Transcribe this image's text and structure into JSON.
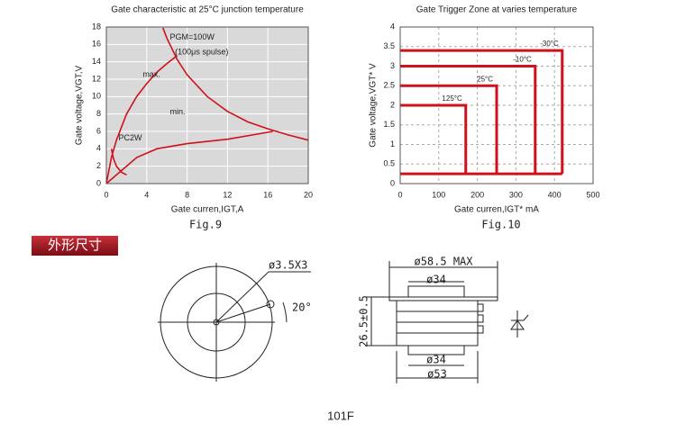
{
  "chart_data": [
    {
      "type": "line",
      "title": "Gate characteristic at 25°C junction temperature",
      "x_label": "Gate curren,IGT,A",
      "y_label": "Gate voltage,VGT,V",
      "xlim": [
        0,
        20
      ],
      "xticks": [
        0,
        4,
        8,
        12,
        16,
        20
      ],
      "ylim": [
        0,
        18
      ],
      "yticks": [
        0,
        2,
        4,
        6,
        8,
        10,
        12,
        14,
        16,
        18
      ],
      "grid": true,
      "series": [
        {
          "color": "#d0101b",
          "x": [
            0,
            0.5,
            1,
            2,
            3,
            4,
            5,
            6,
            7
          ],
          "values": [
            0,
            3,
            5,
            8,
            10,
            11.5,
            12.8,
            13.8,
            14.7
          ]
        },
        {
          "color": "#d0101b",
          "x": [
            0,
            1.5,
            3,
            5,
            8,
            12,
            16.5
          ],
          "values": [
            0,
            1.5,
            3,
            4,
            4.6,
            5.1,
            6
          ]
        },
        {
          "color": "#d0101b",
          "x": [
            5.6,
            6,
            7,
            8,
            10,
            12,
            14,
            16,
            18,
            20
          ],
          "values": [
            17.9,
            16.7,
            14.3,
            12.5,
            10,
            8.3,
            7.1,
            6.3,
            5.6,
            5
          ]
        },
        {
          "color": "#d0101b",
          "x": [
            0.5,
            0.7,
            1,
            1.5,
            2
          ],
          "values": [
            4,
            2.9,
            2,
            1.3,
            1
          ]
        }
      ],
      "annotations": [
        "PGM=100W",
        "(100μs spulse)",
        "max.",
        "min.",
        "PC2W"
      ]
    },
    {
      "type": "zone",
      "title": "Gate Trigger Zone at varies temperature",
      "x_label": "Gate curren,IGT* mA",
      "y_label": "Gate voltage,VGT* V",
      "xlim": [
        0,
        500
      ],
      "xticks": [
        0,
        100,
        200,
        300,
        400,
        500
      ],
      "ylim": [
        0,
        4
      ],
      "yticks": [
        0,
        0.5,
        1,
        1.5,
        2,
        2.5,
        3,
        3.5,
        4
      ],
      "grid": true,
      "series": [
        {
          "name": "125°C",
          "color": "#d0101b",
          "x": [
            0,
            170,
            170
          ],
          "values": [
            2,
            2,
            0.25
          ]
        },
        {
          "name": "25°C",
          "color": "#d0101b",
          "x": [
            0,
            250,
            250
          ],
          "values": [
            2.5,
            2.5,
            0.25
          ]
        },
        {
          "name": "-10°C",
          "color": "#d0101b",
          "x": [
            0,
            350,
            350
          ],
          "values": [
            3,
            3,
            0.25
          ]
        },
        {
          "name": "-30°C",
          "color": "#d0101b",
          "x": [
            0,
            420,
            420
          ],
          "values": [
            3.4,
            3.4,
            0.25
          ]
        },
        {
          "color": "#d0101b",
          "x": [
            0,
            420
          ],
          "values": [
            0.25,
            0.25
          ]
        }
      ]
    }
  ],
  "figure_labels": [
    "Fig.9",
    "Fig.10"
  ],
  "section_title": "外形尺寸",
  "drawing": {
    "hole": "ø3.5X3",
    "angle": "20°",
    "outer_max": "ø58.5  MAX",
    "top_dia": "ø34",
    "height": "26.5±0.5",
    "bottom_dia": "ø34",
    "body_dia": "ø53",
    "caption": "101F"
  }
}
